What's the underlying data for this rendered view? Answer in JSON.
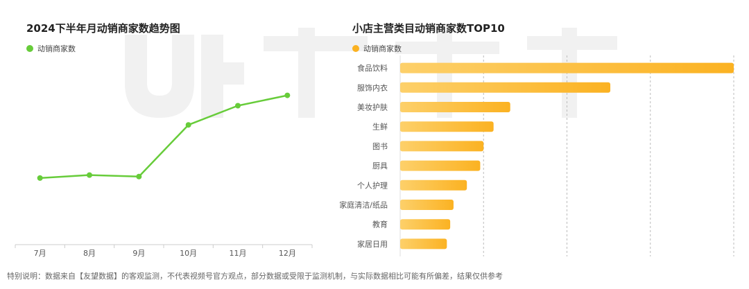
{
  "chart_data": [
    {
      "type": "line",
      "title": "2024下半年月动销商家数趋势图",
      "categories": [
        "7月",
        "8月",
        "9月",
        "10月",
        "11月",
        "12月"
      ],
      "series": [
        {
          "name": "动销商家数",
          "values": [
            24,
            26,
            25,
            60,
            73,
            80
          ]
        }
      ],
      "ylim": [
        0,
        100
      ],
      "grid": false,
      "legend": "top-left",
      "color": "#67cc3a"
    },
    {
      "type": "bar",
      "orientation": "horizontal",
      "title": "小店主营类目动销商家数TOP10",
      "categories": [
        "食品饮料",
        "服饰内衣",
        "美妆护肤",
        "生鲜",
        "图书",
        "厨具",
        "个人护理",
        "家庭清洁/纸品",
        "教育",
        "家居日用"
      ],
      "series": [
        {
          "name": "动销商家数",
          "values": [
            100,
            63,
            33,
            28,
            25,
            24,
            20,
            16,
            15,
            14
          ]
        }
      ],
      "xlim": [
        0,
        100
      ],
      "grid": true,
      "legend": "top-left",
      "color": "#fbb222"
    }
  ],
  "footnote": "特别说明：数据来自【友望数据】的客观监测，不代表视频号官方观点，部分数据或受限于监测机制，与实际数据相比可能有所偏差，结果仅供参考"
}
